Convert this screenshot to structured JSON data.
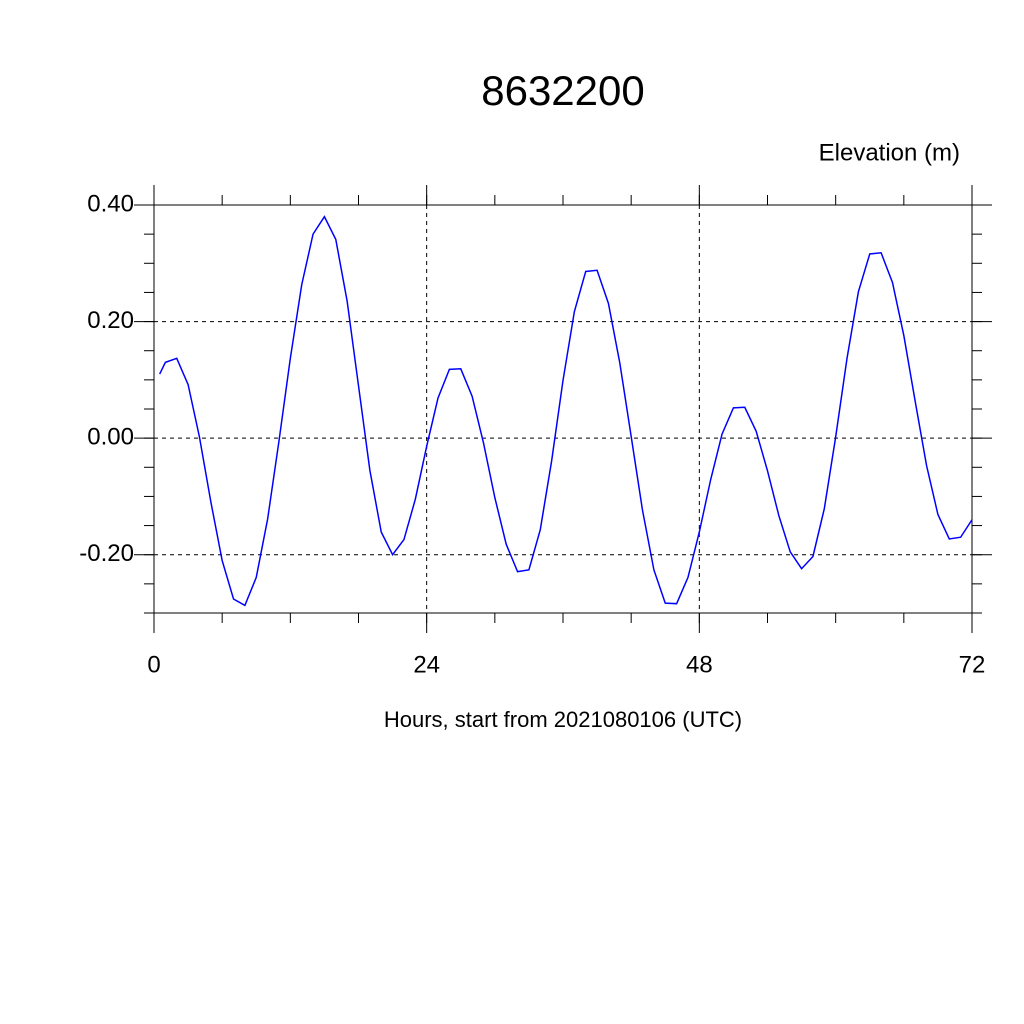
{
  "chart_data": {
    "type": "line",
    "title": "8632200",
    "ylabel": "Elevation (m)",
    "xlabel": "Hours, start from 2021080106 (UTC)",
    "x": [
      0.5,
      1,
      2,
      3,
      4,
      5,
      6,
      7,
      8,
      9,
      10,
      11,
      12,
      13,
      14,
      15,
      16,
      17,
      18,
      19,
      20,
      21,
      22,
      23,
      24,
      25,
      26,
      27,
      28,
      29,
      30,
      31,
      32,
      33,
      34,
      35,
      36,
      37,
      38,
      39,
      40,
      41,
      42,
      43,
      44,
      45,
      46,
      47,
      48,
      49,
      50,
      51,
      52,
      53,
      54,
      55,
      56,
      57,
      58,
      59,
      60,
      61,
      62,
      63,
      64,
      65,
      66,
      67,
      68,
      69,
      70,
      71,
      72
    ],
    "series": [
      {
        "color": "#0000ff",
        "values": [
          0.11,
          0.13,
          0.137,
          0.092,
          0.002,
          -0.109,
          -0.21,
          -0.276,
          -0.287,
          -0.239,
          -0.139,
          -0.005,
          0.137,
          0.263,
          0.35,
          0.38,
          0.341,
          0.235,
          0.09,
          -0.055,
          -0.161,
          -0.2,
          -0.174,
          -0.105,
          -0.014,
          0.069,
          0.118,
          0.119,
          0.072,
          -0.008,
          -0.102,
          -0.182,
          -0.229,
          -0.226,
          -0.157,
          -0.039,
          0.099,
          0.217,
          0.286,
          0.288,
          0.231,
          0.129,
          0.003,
          -0.124,
          -0.226,
          -0.283,
          -0.284,
          -0.239,
          -0.161,
          -0.071,
          0.007,
          0.052,
          0.053,
          0.012,
          -0.056,
          -0.133,
          -0.195,
          -0.224,
          -0.203,
          -0.121,
          0.002,
          0.137,
          0.251,
          0.316,
          0.318,
          0.267,
          0.176,
          0.063,
          -0.047,
          -0.131,
          -0.173,
          -0.17,
          -0.14
        ]
      }
    ],
    "xlim": [
      0,
      72
    ],
    "xticks": [
      0,
      24,
      48,
      72
    ],
    "ylim": [
      -0.3,
      0.4
    ],
    "yticks": [
      {
        "value": 0.4,
        "label": "0.40"
      },
      {
        "value": 0.2,
        "label": "0.20"
      },
      {
        "value": 0,
        "label": "0.00"
      },
      {
        "value": -0.2,
        "label": "-0.20"
      }
    ],
    "grid": true
  }
}
